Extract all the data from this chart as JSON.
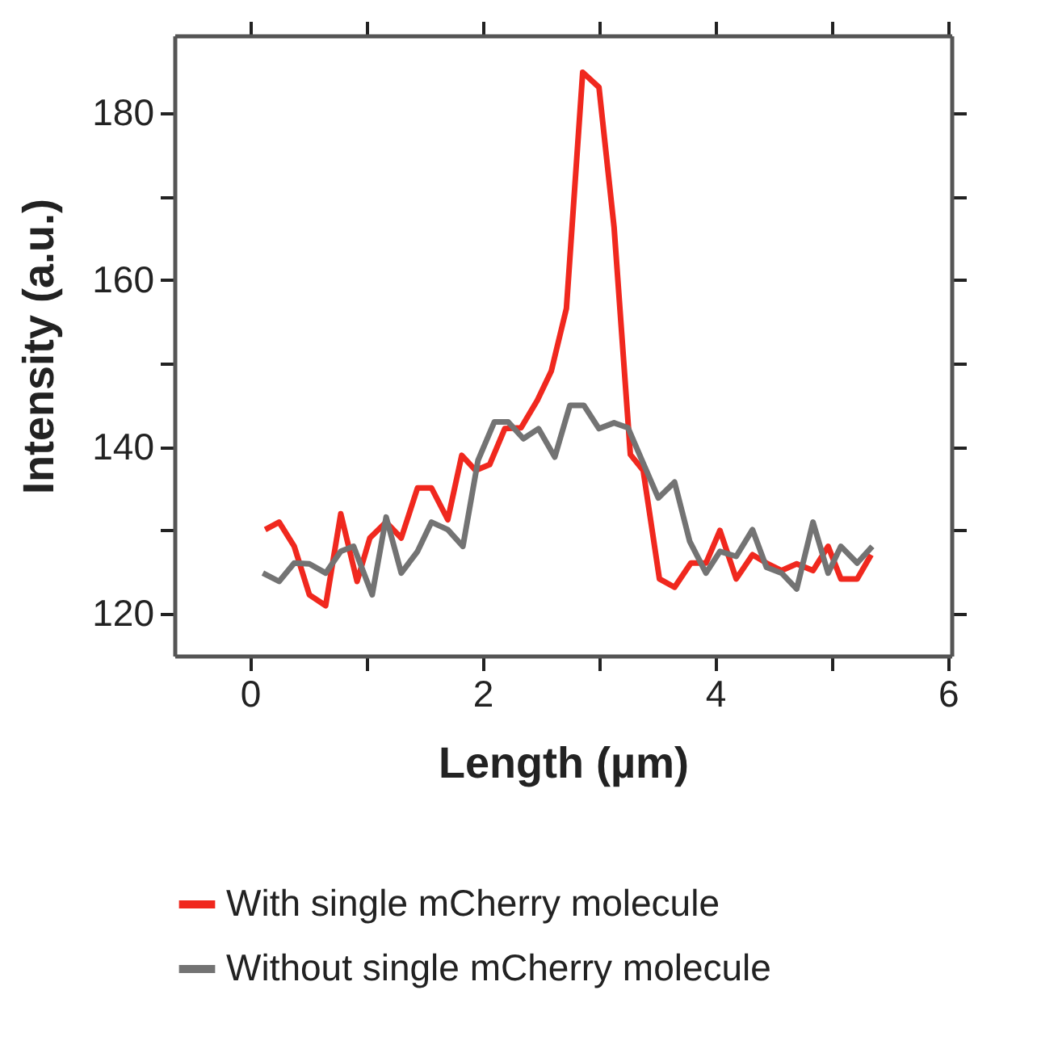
{
  "chart_data": {
    "type": "line",
    "xlabel": "Length (µm)",
    "ylabel": "Intensity (a.u.)",
    "xlim": [
      -0.65,
      6.03
    ],
    "ylim": [
      115,
      189.3
    ],
    "xticks": [
      0,
      {
        "value": 1,
        "label": null
      },
      2,
      {
        "value": 3,
        "label": null
      },
      4,
      {
        "value": 5,
        "label": null
      },
      6
    ],
    "yticks": [
      120,
      {
        "value": 130,
        "label": null
      },
      140,
      {
        "value": 150,
        "label": null
      },
      160,
      {
        "value": 170,
        "label": null
      },
      180
    ],
    "grid": false,
    "legend": "bottom",
    "line_style": "solid",
    "marker": "none",
    "series": [
      {
        "name": "With single mCherry molecule",
        "color": "#f0281e",
        "x": [
          0.13,
          0.25,
          0.38,
          0.51,
          0.65,
          0.78,
          0.92,
          1.03,
          1.17,
          1.3,
          1.44,
          1.56,
          1.7,
          1.82,
          1.94,
          2.06,
          2.19,
          2.33,
          2.47,
          2.59,
          2.72,
          2.86,
          3.0,
          3.13,
          3.27,
          3.38,
          3.52,
          3.65,
          3.79,
          3.92,
          4.04,
          4.18,
          4.32,
          4.44,
          4.57,
          4.7,
          4.84,
          4.97,
          5.08,
          5.22,
          5.34
        ],
        "values": [
          130.1,
          131,
          128.1,
          122.3,
          121,
          132,
          123.9,
          129.1,
          131,
          129.1,
          135.1,
          135.1,
          131.3,
          139,
          137.2,
          137.9,
          142.2,
          142.3,
          145.6,
          149.1,
          156.6,
          184.9,
          183.1,
          166.3,
          139.1,
          137.2,
          124.2,
          123.2,
          126.1,
          126.1,
          130,
          124.2,
          127.1,
          126.1,
          125.2,
          126,
          125.2,
          128.1,
          124.2,
          124.2,
          127.1
        ]
      },
      {
        "name": "Without single mCherry molecule",
        "color": "#737373",
        "x": [
          0.11,
          0.25,
          0.38,
          0.51,
          0.65,
          0.78,
          0.89,
          1.05,
          1.17,
          1.3,
          1.44,
          1.56,
          1.7,
          1.83,
          1.96,
          2.1,
          2.22,
          2.35,
          2.48,
          2.62,
          2.75,
          2.87,
          3.0,
          3.13,
          3.25,
          3.37,
          3.51,
          3.65,
          3.78,
          3.92,
          4.04,
          4.18,
          4.32,
          4.44,
          4.57,
          4.7,
          4.84,
          4.97,
          5.08,
          5.22,
          5.35
        ],
        "values": [
          124.9,
          123.9,
          126.1,
          126,
          124.9,
          127.5,
          128.1,
          122.3,
          131.6,
          124.9,
          127.5,
          131,
          130.1,
          128.1,
          138.4,
          143,
          143,
          141,
          142.2,
          138.8,
          145,
          145,
          142.2,
          142.9,
          142.3,
          138.4,
          133.9,
          135.8,
          128.7,
          124.9,
          127.5,
          126.9,
          130.1,
          125.6,
          124.9,
          123,
          131,
          124.9,
          128.1,
          126.1,
          128.1
        ]
      }
    ]
  }
}
